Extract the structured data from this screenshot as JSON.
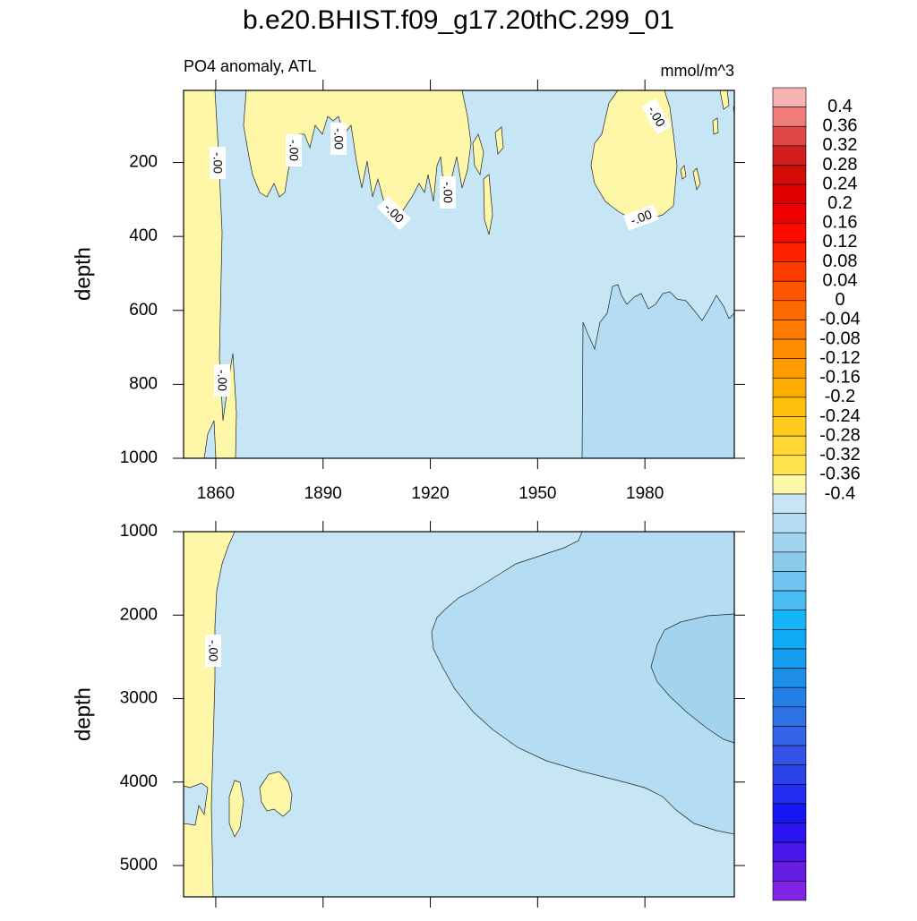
{
  "title": "b.e20.BHIST.f09_g17.20thC.299_01",
  "chart_data": [
    {
      "type": "contour",
      "subtitle": "PO4 anomaly, ATL",
      "units": "mmol/m^3",
      "ylabel": "depth",
      "xlim": [
        1851,
        2005
      ],
      "xticks": [
        1860,
        1890,
        1920,
        1950,
        1980
      ],
      "ylim": [
        5,
        1000
      ],
      "yticks": [
        200,
        400,
        600,
        800,
        1000
      ],
      "y_reversed": true,
      "contour_labels": [
        "-.00",
        "-.00",
        "-.00",
        "-.00",
        "-.00",
        "-.00",
        "-.00",
        "-.00"
      ]
    },
    {
      "type": "contour",
      "ylabel": "depth",
      "xlim": [
        1851,
        2005
      ],
      "ylim": [
        1000,
        5375
      ],
      "yticks": [
        1000,
        2000,
        3000,
        4000,
        5000
      ],
      "y_reversed": true,
      "contour_labels": [
        "-.00"
      ]
    }
  ],
  "colorbar": {
    "ticks": [
      0.4,
      0.36,
      0.32,
      0.28,
      0.24,
      0.2,
      0.16,
      0.12,
      0.08,
      0.04,
      0,
      -0.04,
      -0.08,
      -0.12,
      -0.16,
      -0.2,
      -0.24,
      -0.28,
      -0.32,
      -0.36,
      -0.4
    ],
    "colors": [
      "#f9b2b4",
      "#f07b7b",
      "#e04848",
      "#d11f1f",
      "#d40b0b",
      "#e00000",
      "#ee0000",
      "#fb0a00",
      "#ff2200",
      "#ff3c00",
      "#ff5500",
      "#ff6a00",
      "#ff7c00",
      "#ff8c00",
      "#ff9c00",
      "#ffac00",
      "#ffbf0a",
      "#ffcc1f",
      "#ffd833",
      "#ffe450",
      "#fff7a8",
      "#c6e6f5",
      "#b4dcf2",
      "#a2d4ef",
      "#8ccbeb",
      "#6fc3ee",
      "#4cbdf1",
      "#14b6f7",
      "#0eaaf3",
      "#169cee",
      "#1b8ee9",
      "#2480e6",
      "#2c72e6",
      "#3463e6",
      "#3454e8",
      "#2d43ea",
      "#222ef0",
      "#1616f5",
      "#2a14ef",
      "#4716e8",
      "#661ce2",
      "#8224e6"
    ]
  }
}
